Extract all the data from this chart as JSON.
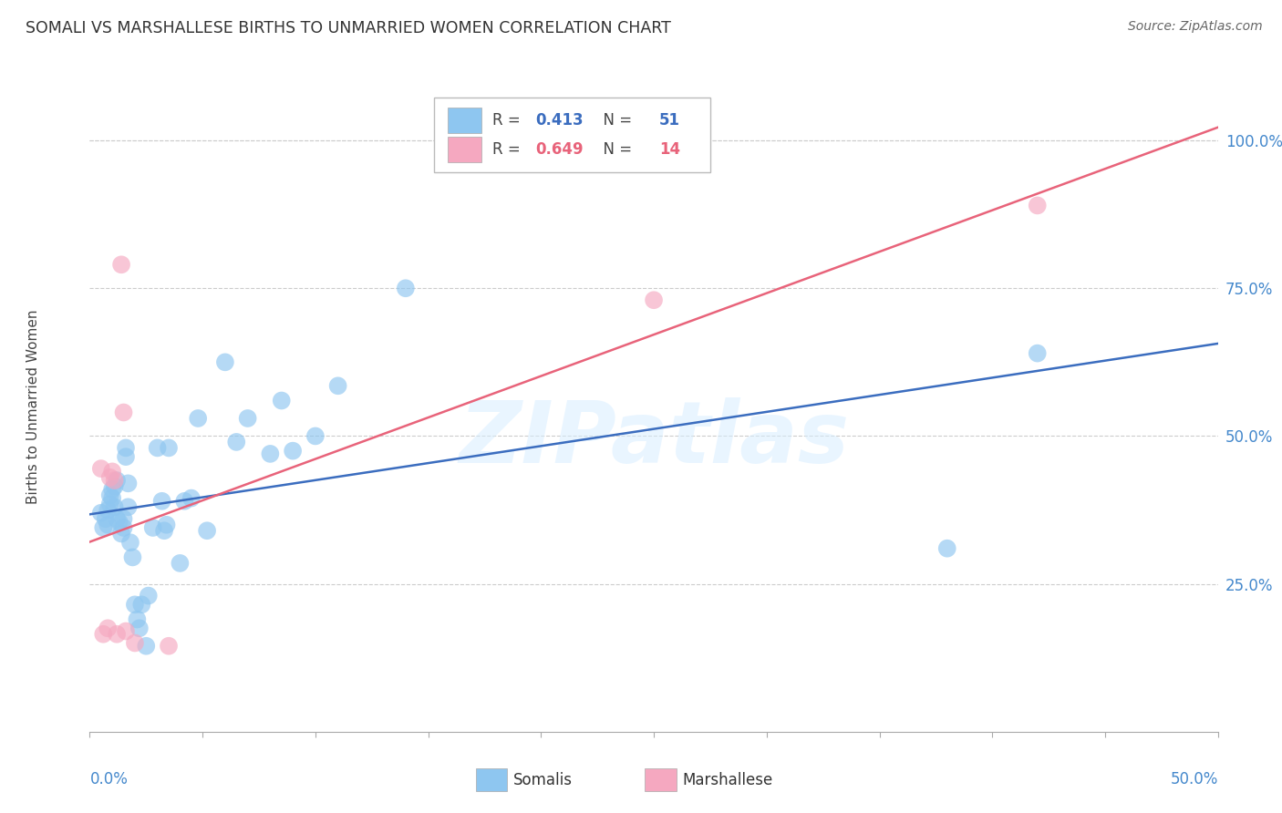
{
  "title": "SOMALI VS MARSHALLESE BIRTHS TO UNMARRIED WOMEN CORRELATION CHART",
  "source": "Source: ZipAtlas.com",
  "ylabel": "Births to Unmarried Women",
  "ytick_labels": [
    "25.0%",
    "50.0%",
    "75.0%",
    "100.0%"
  ],
  "ytick_values": [
    25.0,
    50.0,
    75.0,
    100.0
  ],
  "xlim": [
    0.0,
    50.0
  ],
  "ylim": [
    0.0,
    110.0
  ],
  "somali_R": 0.413,
  "somali_N": 51,
  "marshallese_R": 0.649,
  "marshallese_N": 14,
  "somali_color": "#8EC6F0",
  "marshallese_color": "#F5A8C0",
  "trendline_somali_color": "#3B6DBF",
  "trendline_marshallese_color": "#E8637A",
  "grid_color": "#CCCCCC",
  "watermark": "ZIPatlas",
  "somali_x": [
    0.5,
    0.6,
    0.7,
    0.8,
    0.8,
    0.9,
    0.9,
    1.0,
    1.0,
    1.1,
    1.1,
    1.2,
    1.2,
    1.3,
    1.4,
    1.5,
    1.5,
    1.6,
    1.6,
    1.7,
    1.7,
    1.8,
    1.9,
    2.0,
    2.1,
    2.2,
    2.3,
    2.5,
    2.6,
    2.8,
    3.0,
    3.2,
    3.3,
    3.4,
    3.5,
    4.0,
    4.2,
    4.5,
    4.8,
    5.2,
    6.0,
    6.5,
    7.0,
    8.0,
    8.5,
    9.0,
    10.0,
    11.0,
    14.0,
    38.0,
    42.0
  ],
  "somali_y": [
    37.0,
    34.5,
    36.0,
    37.5,
    35.0,
    40.0,
    38.5,
    39.5,
    41.0,
    38.0,
    41.5,
    36.0,
    42.5,
    35.5,
    33.5,
    36.0,
    34.5,
    48.0,
    46.5,
    38.0,
    42.0,
    32.0,
    29.5,
    21.5,
    19.0,
    17.5,
    21.5,
    14.5,
    23.0,
    34.5,
    48.0,
    39.0,
    34.0,
    35.0,
    48.0,
    28.5,
    39.0,
    39.5,
    53.0,
    34.0,
    62.5,
    49.0,
    53.0,
    47.0,
    56.0,
    47.5,
    50.0,
    58.5,
    75.0,
    31.0,
    64.0
  ],
  "marshallese_x": [
    0.5,
    0.6,
    0.8,
    0.9,
    1.0,
    1.1,
    1.2,
    1.4,
    1.5,
    1.6,
    2.0,
    3.5,
    25.0,
    42.0
  ],
  "marshallese_y": [
    44.5,
    16.5,
    17.5,
    43.0,
    44.0,
    42.5,
    16.5,
    79.0,
    54.0,
    17.0,
    15.0,
    14.5,
    73.0,
    89.0
  ]
}
